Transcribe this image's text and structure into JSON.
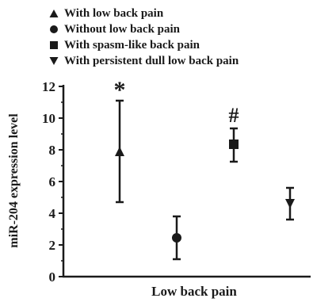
{
  "chart_data": {
    "type": "scatter",
    "title": "",
    "xlabel": "Low back pain",
    "ylabel": "miR-204 expression level",
    "ylim": [
      0,
      12
    ],
    "yticks": [
      0,
      2,
      4,
      6,
      8,
      10,
      12
    ],
    "legend_position": "top",
    "series": [
      {
        "name": "With low back pain",
        "marker": "triangle-up",
        "value": 7.9,
        "error_low": 4.7,
        "error_high": 11.1,
        "annotation": "*"
      },
      {
        "name": "Without low back pain",
        "marker": "circle",
        "value": 2.45,
        "error_low": 1.1,
        "error_high": 3.8,
        "annotation": ""
      },
      {
        "name": "With spasm-like back pain",
        "marker": "square",
        "value": 8.35,
        "error_low": 7.25,
        "error_high": 9.35,
        "annotation": "#"
      },
      {
        "name": "With persistent dull low back pain",
        "marker": "triangle-down",
        "value": 4.6,
        "error_low": 3.6,
        "error_high": 5.6,
        "annotation": ""
      }
    ],
    "colors": {
      "marker": "#1a1a1a",
      "axis": "#1a1a1a"
    }
  }
}
